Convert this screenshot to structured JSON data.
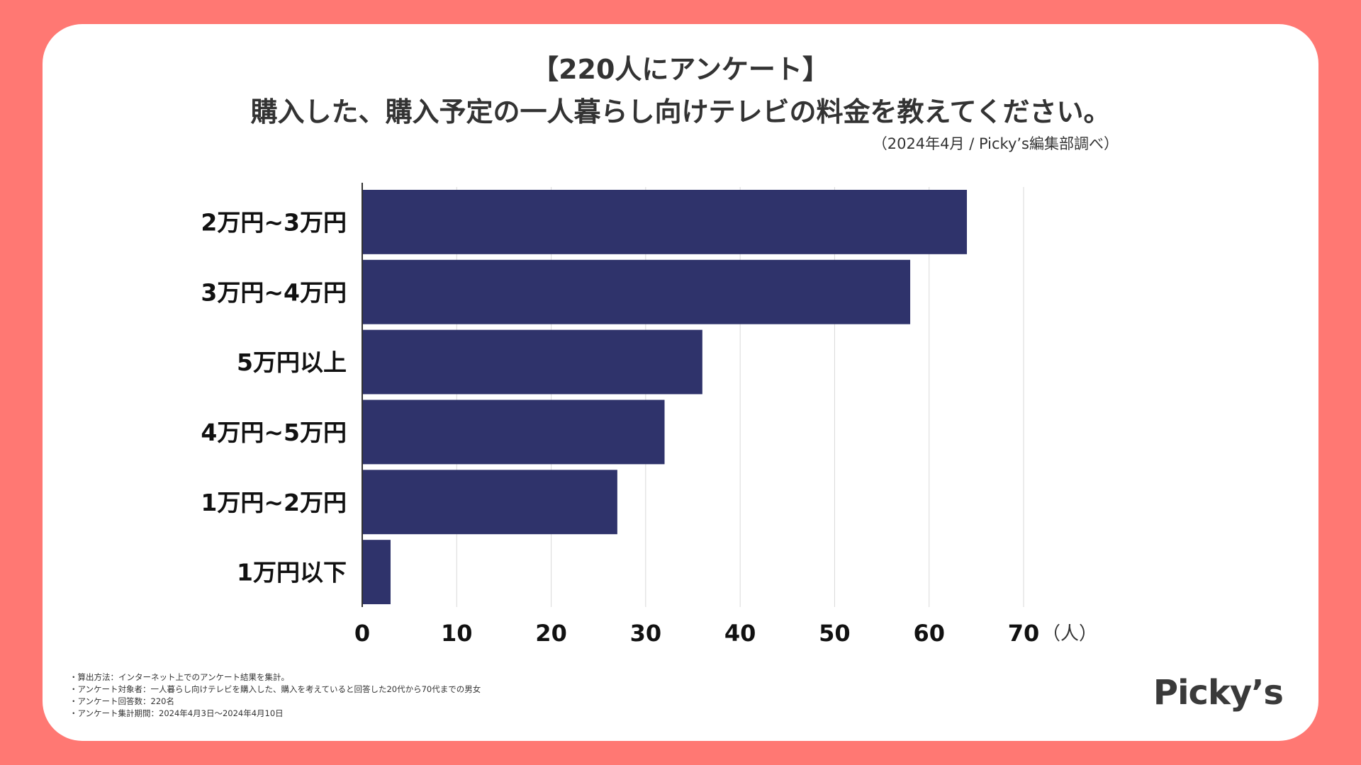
{
  "header": {
    "title_line1": "【220人にアンケート】",
    "title_line2": "購入した、購入予定の一人暮らし向けテレビの料金を教えてください。",
    "source": "（2024年4月 / Picky’s編集部調べ）"
  },
  "chart_data": {
    "type": "bar",
    "orientation": "horizontal",
    "title": "購入した、購入予定の一人暮らし向けテレビの料金を教えてください。",
    "categories": [
      "2万円~3万円",
      "3万円~4万円",
      "5万円以上",
      "4万円~5万円",
      "1万円~2万円",
      "1万円以下"
    ],
    "values": [
      64,
      58,
      36,
      32,
      27,
      3
    ],
    "xlim": [
      0,
      70
    ],
    "xticks": [
      0,
      10,
      20,
      30,
      40,
      50,
      60,
      70
    ],
    "xunit": "（人）",
    "grid": true,
    "legend": "none"
  },
  "colors": {
    "bar": "#2f336b",
    "background": "#ff7873",
    "grid": "#d9d9d9",
    "axis": "#333333"
  },
  "notes": [
    "・算出方法：インターネット上でのアンケート結果を集計。",
    "・アンケート対象者：一人暮らし向けテレビを購入した、購入を考えていると回答した20代から70代までの男女",
    "・アンケート回答数：220名",
    "・アンケート集計期間：2024年4月3日〜2024年4月10日"
  ],
  "logo": "Picky’s"
}
